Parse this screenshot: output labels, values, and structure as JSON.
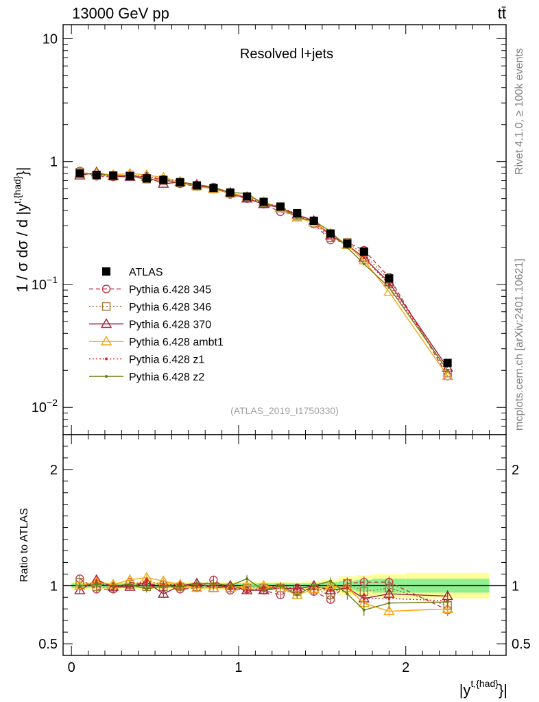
{
  "header": {
    "energy_label": "13000 GeV pp",
    "process_label": "tt̄",
    "rivet_label": "Rivet 4.1.0, ≥ 100k events",
    "mcplots_label": "mcplots.cern.ch [arXiv:2401.10621]",
    "analysis_id": "(ATLAS_2019_I1750330)",
    "annotation": "Resolved l+jets"
  },
  "colors": {
    "atlas": "#000000",
    "p345": "#c0394b",
    "p346": "#a0763a",
    "p370": "#a01a3a",
    "ambt1": "#f5a510",
    "z1": "#e02020",
    "z2": "#6b7a10",
    "band_inner": "#90f090",
    "band_outer": "#ffff99"
  },
  "chart_data": [
    {
      "type": "line",
      "panel": "main",
      "title": "Resolved l+jets",
      "ylabel": "1 / σ dσ / d |y^{t,{had}}|",
      "yscale": "log",
      "ylim": [
        0.006,
        13
      ],
      "xlim": [
        -0.05,
        2.6
      ],
      "ytick_labels": [
        "10^-2",
        "10^-1",
        "1",
        "10"
      ],
      "x": [
        0.05,
        0.15,
        0.25,
        0.35,
        0.45,
        0.55,
        0.65,
        0.75,
        0.85,
        0.95,
        1.05,
        1.15,
        1.25,
        1.35,
        1.45,
        1.55,
        1.65,
        1.75,
        1.9,
        2.25
      ],
      "series": [
        {
          "name": "ATLAS",
          "key": "atlas",
          "values": [
            0.8,
            0.78,
            0.77,
            0.76,
            0.73,
            0.71,
            0.68,
            0.64,
            0.61,
            0.56,
            0.52,
            0.47,
            0.43,
            0.38,
            0.33,
            0.26,
            0.215,
            0.185,
            0.112,
            0.023
          ]
        },
        {
          "name": "Pythia 6.428 345",
          "key": "p345",
          "values": [
            0.84,
            0.76,
            0.75,
            0.78,
            0.74,
            0.72,
            0.66,
            0.63,
            0.62,
            0.54,
            0.5,
            0.45,
            0.39,
            0.37,
            0.31,
            0.23,
            0.22,
            0.19,
            0.115,
            0.018
          ]
        },
        {
          "name": "Pythia 6.428 346",
          "key": "p346",
          "values": [
            0.82,
            0.77,
            0.76,
            0.77,
            0.72,
            0.7,
            0.67,
            0.63,
            0.6,
            0.55,
            0.51,
            0.46,
            0.42,
            0.36,
            0.32,
            0.24,
            0.22,
            0.175,
            0.11,
            0.019
          ]
        },
        {
          "name": "Pythia 6.428 370",
          "key": "p370",
          "values": [
            0.77,
            0.82,
            0.76,
            0.75,
            0.75,
            0.66,
            0.68,
            0.65,
            0.6,
            0.56,
            0.5,
            0.45,
            0.42,
            0.37,
            0.33,
            0.25,
            0.21,
            0.165,
            0.104,
            0.021
          ]
        },
        {
          "name": "Pythia 6.428 ambt1",
          "key": "ambt1",
          "values": [
            0.8,
            0.8,
            0.78,
            0.8,
            0.78,
            0.74,
            0.69,
            0.63,
            0.6,
            0.55,
            0.52,
            0.47,
            0.42,
            0.35,
            0.32,
            0.26,
            0.21,
            0.157,
            0.087,
            0.018
          ]
        },
        {
          "name": "Pythia 6.428 z1",
          "key": "z1",
          "values": [
            0.79,
            0.8,
            0.76,
            0.77,
            0.76,
            0.72,
            0.69,
            0.64,
            0.61,
            0.55,
            0.5,
            0.46,
            0.43,
            0.37,
            0.32,
            0.25,
            0.21,
            0.165,
            0.1,
            0.02
          ]
        },
        {
          "name": "Pythia 6.428 z2",
          "key": "z2",
          "values": [
            0.8,
            0.79,
            0.77,
            0.77,
            0.71,
            0.71,
            0.67,
            0.65,
            0.62,
            0.56,
            0.55,
            0.45,
            0.43,
            0.35,
            0.33,
            0.27,
            0.2,
            0.147,
            0.095,
            0.02
          ]
        }
      ]
    },
    {
      "type": "line",
      "panel": "ratio",
      "ylabel": "Ratio to ATLAS",
      "ylim": [
        0.4,
        2.3
      ],
      "xlim": [
        -0.05,
        2.6
      ],
      "ytick_labels": [
        "0.5",
        "1",
        "2"
      ],
      "xtick_labels": [
        "0",
        "1",
        "2"
      ],
      "xlabel": "|y^{t,{had}}|",
      "x": [
        0.05,
        0.15,
        0.25,
        0.35,
        0.45,
        0.55,
        0.65,
        0.75,
        0.85,
        0.95,
        1.05,
        1.15,
        1.25,
        1.35,
        1.45,
        1.55,
        1.65,
        1.75,
        1.9,
        2.25
      ],
      "band_edges": [
        0.0,
        0.1,
        0.2,
        0.3,
        0.4,
        0.5,
        0.6,
        0.7,
        0.8,
        0.9,
        1.0,
        1.1,
        1.2,
        1.3,
        1.4,
        1.5,
        1.6,
        1.7,
        1.8,
        2.0,
        2.5
      ],
      "band_inner": [
        0.02,
        0.02,
        0.02,
        0.02,
        0.02,
        0.02,
        0.02,
        0.02,
        0.02,
        0.02,
        0.02,
        0.02,
        0.02,
        0.02,
        0.02,
        0.03,
        0.04,
        0.05,
        0.06,
        0.06
      ],
      "band_outer": [
        0.03,
        0.03,
        0.03,
        0.03,
        0.03,
        0.03,
        0.03,
        0.03,
        0.03,
        0.03,
        0.03,
        0.03,
        0.03,
        0.03,
        0.04,
        0.05,
        0.08,
        0.09,
        0.1,
        0.11
      ],
      "series": [
        {
          "name": "Pythia 6.428 345",
          "key": "p345",
          "values": [
            1.06,
            0.97,
            0.97,
            1.03,
            1.01,
            1.01,
            0.97,
            0.98,
            1.05,
            0.96,
            0.97,
            0.96,
            0.92,
            0.98,
            0.95,
            0.88,
            1.02,
            1.03,
            1.03,
            0.79
          ]
        },
        {
          "name": "Pythia 6.428 346",
          "key": "p346",
          "values": [
            1.03,
            0.99,
            0.98,
            1.01,
            0.99,
            0.99,
            0.99,
            0.99,
            0.98,
            0.98,
            0.98,
            0.98,
            0.98,
            0.95,
            0.97,
            0.92,
            1.02,
            0.95,
            0.98,
            0.83
          ]
        },
        {
          "name": "Pythia 6.428 370",
          "key": "p370",
          "values": [
            0.96,
            1.05,
            0.99,
            0.99,
            1.03,
            0.93,
            1.0,
            1.02,
            0.98,
            1.0,
            0.96,
            0.96,
            0.98,
            0.97,
            1.0,
            0.96,
            0.98,
            0.89,
            0.93,
            0.91
          ]
        },
        {
          "name": "Pythia 6.428 ambt1",
          "key": "ambt1",
          "values": [
            1.0,
            1.03,
            1.01,
            1.05,
            1.07,
            1.04,
            1.01,
            0.98,
            0.98,
            0.98,
            1.0,
            1.0,
            0.98,
            0.92,
            0.97,
            1.0,
            0.98,
            0.85,
            0.78,
            0.8
          ]
        },
        {
          "name": "Pythia 6.428 z1",
          "key": "z1",
          "values": [
            0.99,
            1.03,
            0.99,
            1.01,
            1.04,
            1.01,
            1.01,
            1.0,
            1.0,
            0.98,
            0.96,
            0.98,
            1.0,
            0.97,
            0.97,
            0.96,
            0.98,
            0.89,
            0.89,
            0.87
          ]
        },
        {
          "name": "Pythia 6.428 z2",
          "key": "z2",
          "values": [
            1.0,
            1.01,
            1.0,
            1.01,
            0.97,
            1.0,
            0.99,
            1.02,
            1.02,
            1.0,
            1.06,
            0.96,
            1.0,
            0.92,
            1.0,
            1.04,
            0.93,
            0.79,
            0.85,
            0.86
          ]
        }
      ]
    }
  ],
  "legend": [
    {
      "label": "ATLAS",
      "key": "atlas",
      "marker": "square-filled",
      "dash": "none"
    },
    {
      "label": "Pythia 6.428 345",
      "key": "p345",
      "marker": "circle-open",
      "dash": "dashed"
    },
    {
      "label": "Pythia 6.428 346",
      "key": "p346",
      "marker": "square-open",
      "dash": "dotted"
    },
    {
      "label": "Pythia 6.428 370",
      "key": "p370",
      "marker": "triangle-open",
      "dash": "solid"
    },
    {
      "label": "Pythia 6.428 ambt1",
      "key": "ambt1",
      "marker": "triangle-open",
      "dash": "solid"
    },
    {
      "label": "Pythia 6.428 z1",
      "key": "z1",
      "marker": "dot",
      "dash": "dotted"
    },
    {
      "label": "Pythia 6.428 z2",
      "key": "z2",
      "marker": "dot",
      "dash": "solid"
    }
  ]
}
